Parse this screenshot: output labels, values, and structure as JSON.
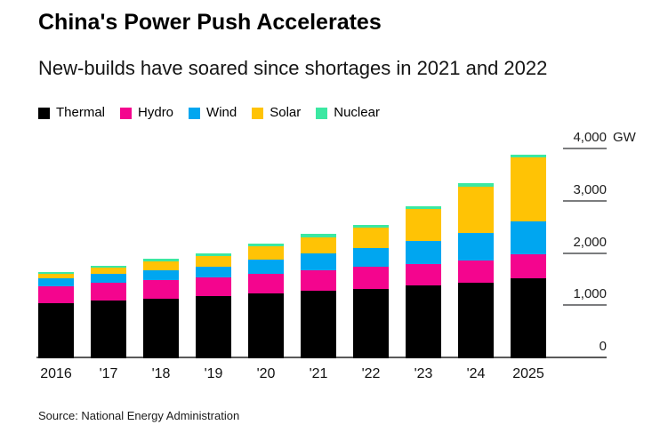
{
  "header": {
    "title": "China's Power Push Accelerates",
    "subtitle": "New-builds have soared since shortages in 2021 and 2022"
  },
  "source": "Source: National Energy Administration",
  "chart_data": {
    "type": "bar",
    "subtype": "stacked",
    "title": "China's Power Push Accelerates",
    "subtitle": "New-builds have soared since shortages in 2021 and 2022",
    "unit_label": "GW",
    "categories": [
      "2016",
      "'17",
      "'18",
      "'19",
      "'20",
      "'21",
      "'22",
      "'23",
      "'24",
      "2025"
    ],
    "series": [
      {
        "name": "Thermal",
        "color": "#000000",
        "values": [
          1054,
          1106,
          1144,
          1190,
          1245,
          1297,
          1332,
          1390,
          1444,
          1535
        ]
      },
      {
        "name": "Hydro",
        "color": "#f4058e",
        "values": [
          332,
          341,
          352,
          356,
          370,
          391,
          414,
          422,
          436,
          455
        ]
      },
      {
        "name": "Wind",
        "color": "#00a6f0",
        "values": [
          149,
          164,
          184,
          210,
          282,
          328,
          365,
          441,
          521,
          625
        ]
      },
      {
        "name": "Solar",
        "color": "#ffc305",
        "values": [
          77,
          130,
          174,
          204,
          253,
          306,
          393,
          609,
          887,
          1225
        ]
      },
      {
        "name": "Nuclear",
        "color": "#3be8a2",
        "values": [
          34,
          36,
          45,
          49,
          50,
          53,
          56,
          57,
          60,
          60
        ]
      }
    ],
    "ylim": [
      0,
      4000
    ],
    "yticks": [
      0,
      1000,
      2000,
      3000,
      4000
    ],
    "ytick_labels": [
      "0",
      "1,000",
      "2,000",
      "3,000",
      "4,000"
    ],
    "axis_side": "right",
    "grid": "short-right-ticks",
    "legend_position": "top-left"
  }
}
